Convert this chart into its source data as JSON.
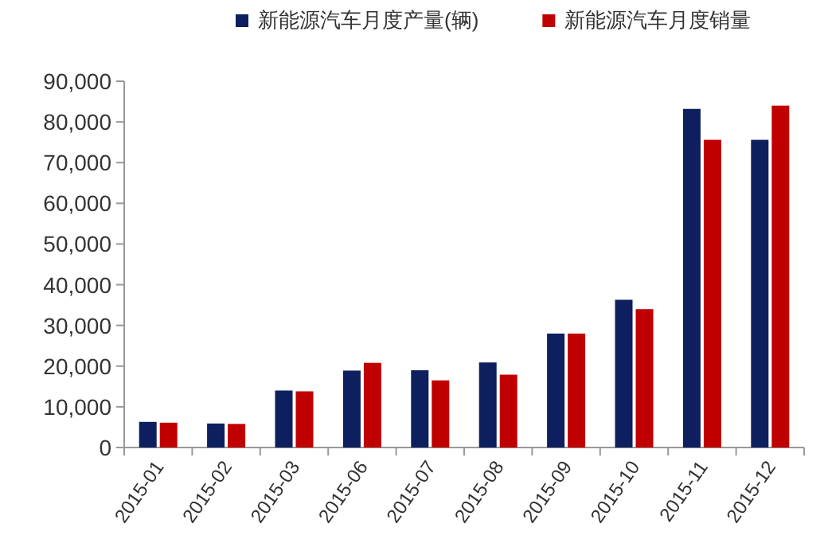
{
  "chart_data": {
    "type": "bar",
    "categories": [
      "2015-01",
      "2015-02",
      "2015-03",
      "2015-06",
      "2015-07",
      "2015-08",
      "2015-09",
      "2015-10",
      "2015-11",
      "2015-12"
    ],
    "series": [
      {
        "name": "新能源汽车月度产量(辆)",
        "color": "#0d1f5e",
        "values": [
          6300,
          5900,
          14000,
          18900,
          19000,
          20900,
          28000,
          36300,
          83200,
          75600
        ]
      },
      {
        "name": "新能源汽车月度销量",
        "color": "#c00000",
        "values": [
          6100,
          5800,
          13800,
          20800,
          16500,
          17900,
          28000,
          34000,
          75600,
          84000
        ]
      }
    ],
    "ylim": [
      0,
      90000
    ],
    "yticks": [
      {
        "value": 0,
        "label": "0"
      },
      {
        "value": 10000,
        "label": "10,000"
      },
      {
        "value": 20000,
        "label": "20,000"
      },
      {
        "value": 30000,
        "label": "30,000"
      },
      {
        "value": 40000,
        "label": "40,000"
      },
      {
        "value": 50000,
        "label": "50,000"
      },
      {
        "value": 60000,
        "label": "60,000"
      },
      {
        "value": 70000,
        "label": "70,000"
      },
      {
        "value": 80000,
        "label": "80,000"
      },
      {
        "value": 90000,
        "label": "90,000"
      }
    ],
    "legend": "top",
    "grid": false
  }
}
